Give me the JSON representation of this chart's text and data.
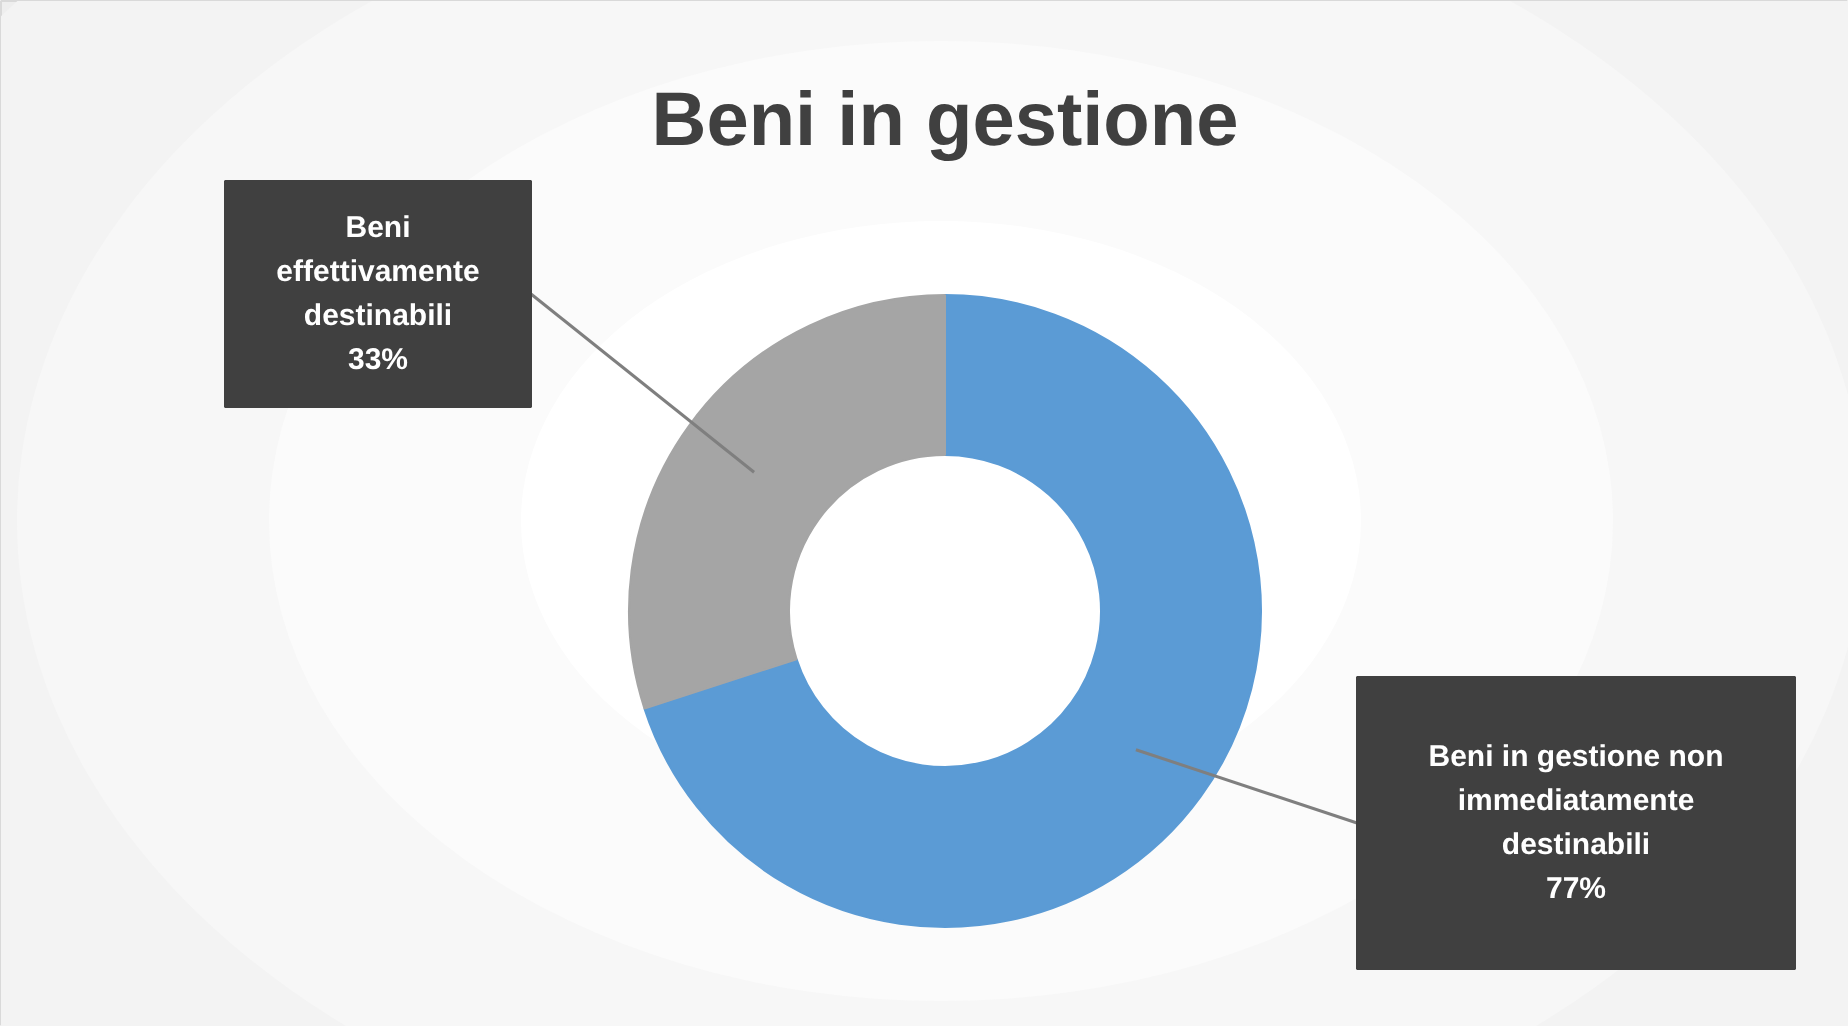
{
  "chart_data": {
    "type": "donut",
    "title": "Beni in gestione",
    "categories": [
      "Beni in gestione non immediatamente destinabili",
      "Beni effettivamente destinabili"
    ],
    "values": [
      77,
      33
    ],
    "colors": [
      "#5b9bd5",
      "#a5a5a5"
    ],
    "value_labels": [
      "77%",
      "33%"
    ]
  }
}
